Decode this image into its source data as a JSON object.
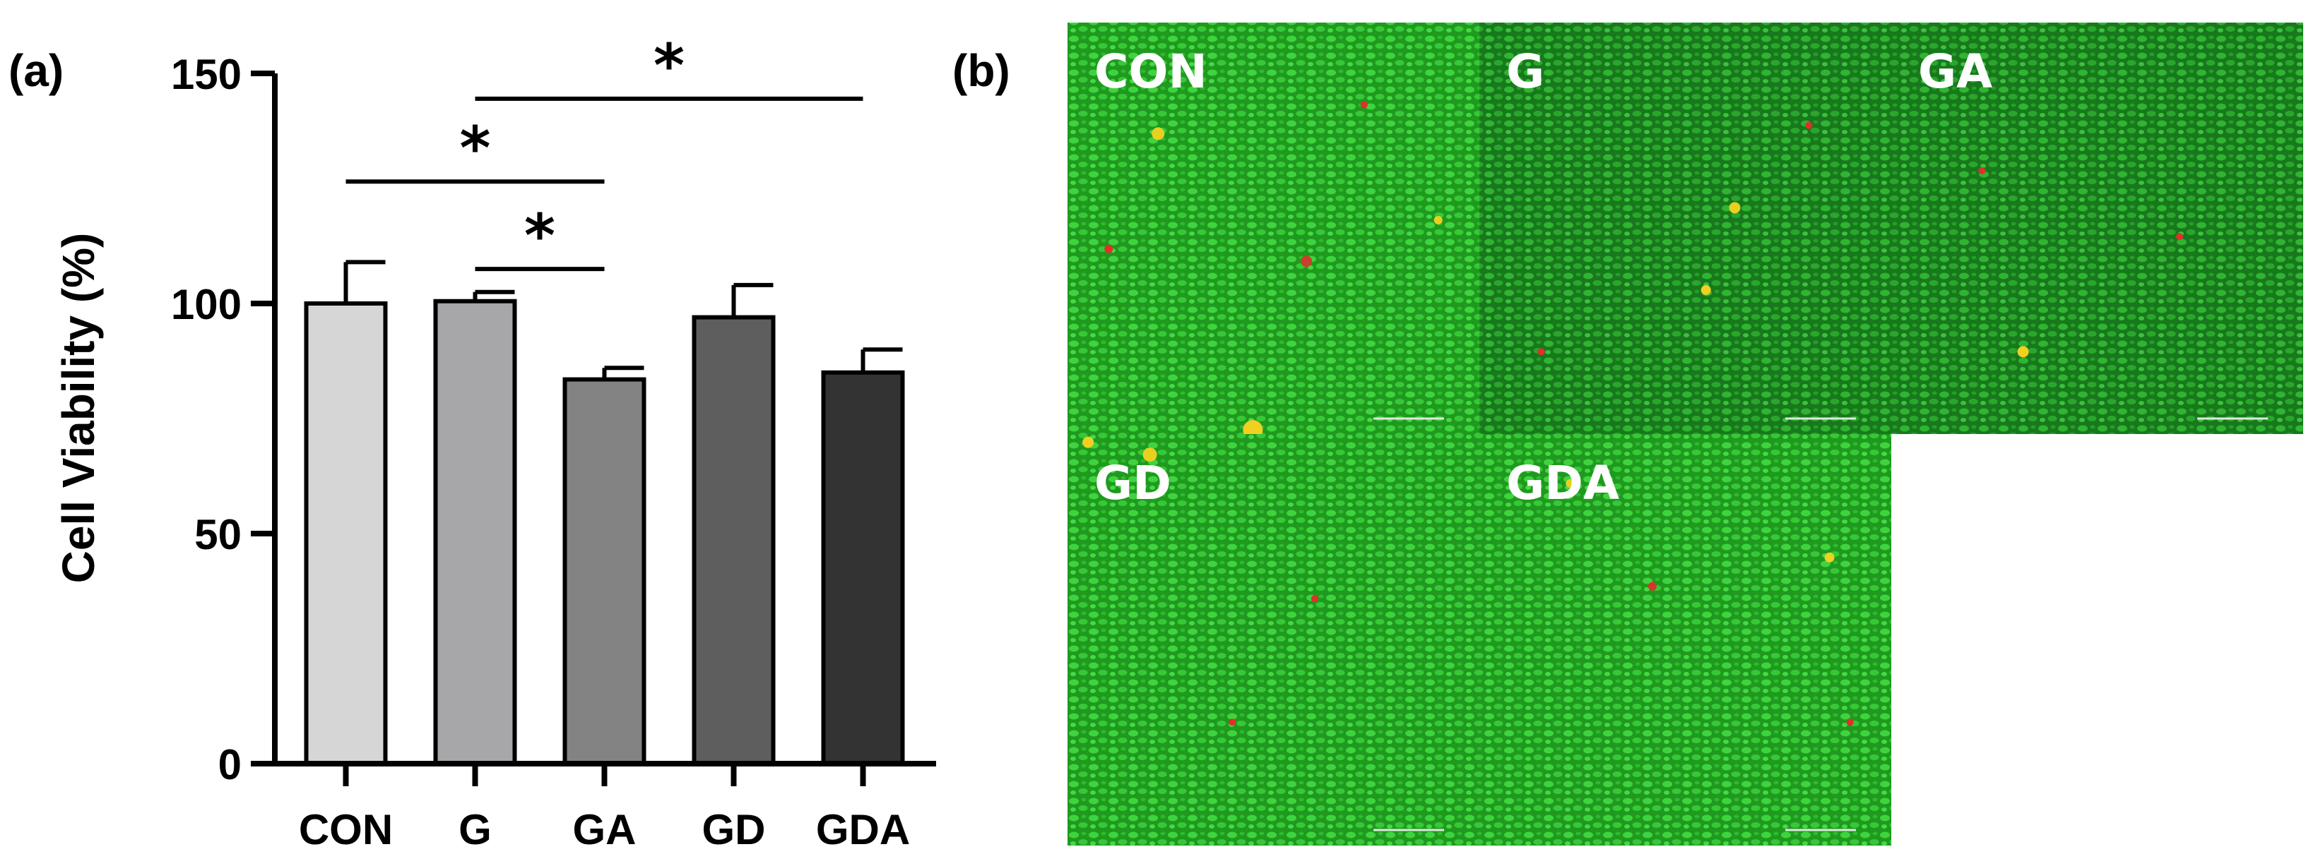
{
  "panels": {
    "a_label": "(a)",
    "b_label": "(b)"
  },
  "chart_data": {
    "type": "bar",
    "categories": [
      "CON",
      "G",
      "GA",
      "GD",
      "GDA"
    ],
    "values": [
      100,
      100.5,
      83.5,
      97,
      85
    ],
    "errors": [
      9,
      2,
      2.5,
      7,
      5
    ],
    "bar_colors": [
      "#d6d6d6",
      "#a7a7a9",
      "#838383",
      "#5e5e5e",
      "#333333"
    ],
    "title": "",
    "xlabel": "",
    "ylabel": "Cell Viability (%)",
    "ylim": [
      0,
      150
    ],
    "yticks": [
      0,
      50,
      100,
      150
    ],
    "grid": false,
    "significance": [
      {
        "from": "G",
        "to": "GDA",
        "y": 144.5,
        "label": "*"
      },
      {
        "from": "CON",
        "to": "GA",
        "y": 126.5,
        "label": "*"
      },
      {
        "from": "G",
        "to": "GA",
        "y": 107.5,
        "label": "*"
      }
    ]
  },
  "micrographs": {
    "tiles": [
      {
        "label": "CON"
      },
      {
        "label": "G"
      },
      {
        "label": "GA"
      },
      {
        "label": "GD"
      },
      {
        "label": "GDA"
      }
    ],
    "stain_colors": {
      "live": "#2ecf2e",
      "dead": "#e0302a",
      "background": "#1f8f1f"
    }
  }
}
